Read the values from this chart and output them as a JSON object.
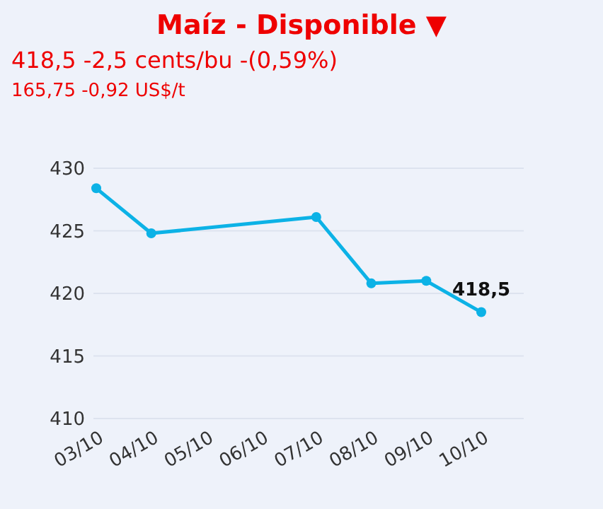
{
  "chart_data": {
    "type": "line",
    "title": "Maíz - Disponible ▼",
    "subtitle": "418,5 -2,5 cents/bu -(0,59%)",
    "annotations": [
      "165,75 -0,92 US$/t"
    ],
    "categories": [
      "03/10",
      "04/10",
      "05/10",
      "06/10",
      "07/10",
      "08/10",
      "09/10",
      "10/10"
    ],
    "values": [
      428.4,
      424.8,
      null,
      null,
      426.1,
      420.8,
      421.0,
      418.5
    ],
    "value_labels": [
      null,
      null,
      null,
      null,
      null,
      null,
      null,
      "418,5"
    ],
    "color": "#0cb2e6",
    "marker": "circle",
    "ylim": [
      410,
      430
    ],
    "yticks": [
      410,
      415,
      420,
      425,
      430
    ],
    "grid": "y"
  }
}
